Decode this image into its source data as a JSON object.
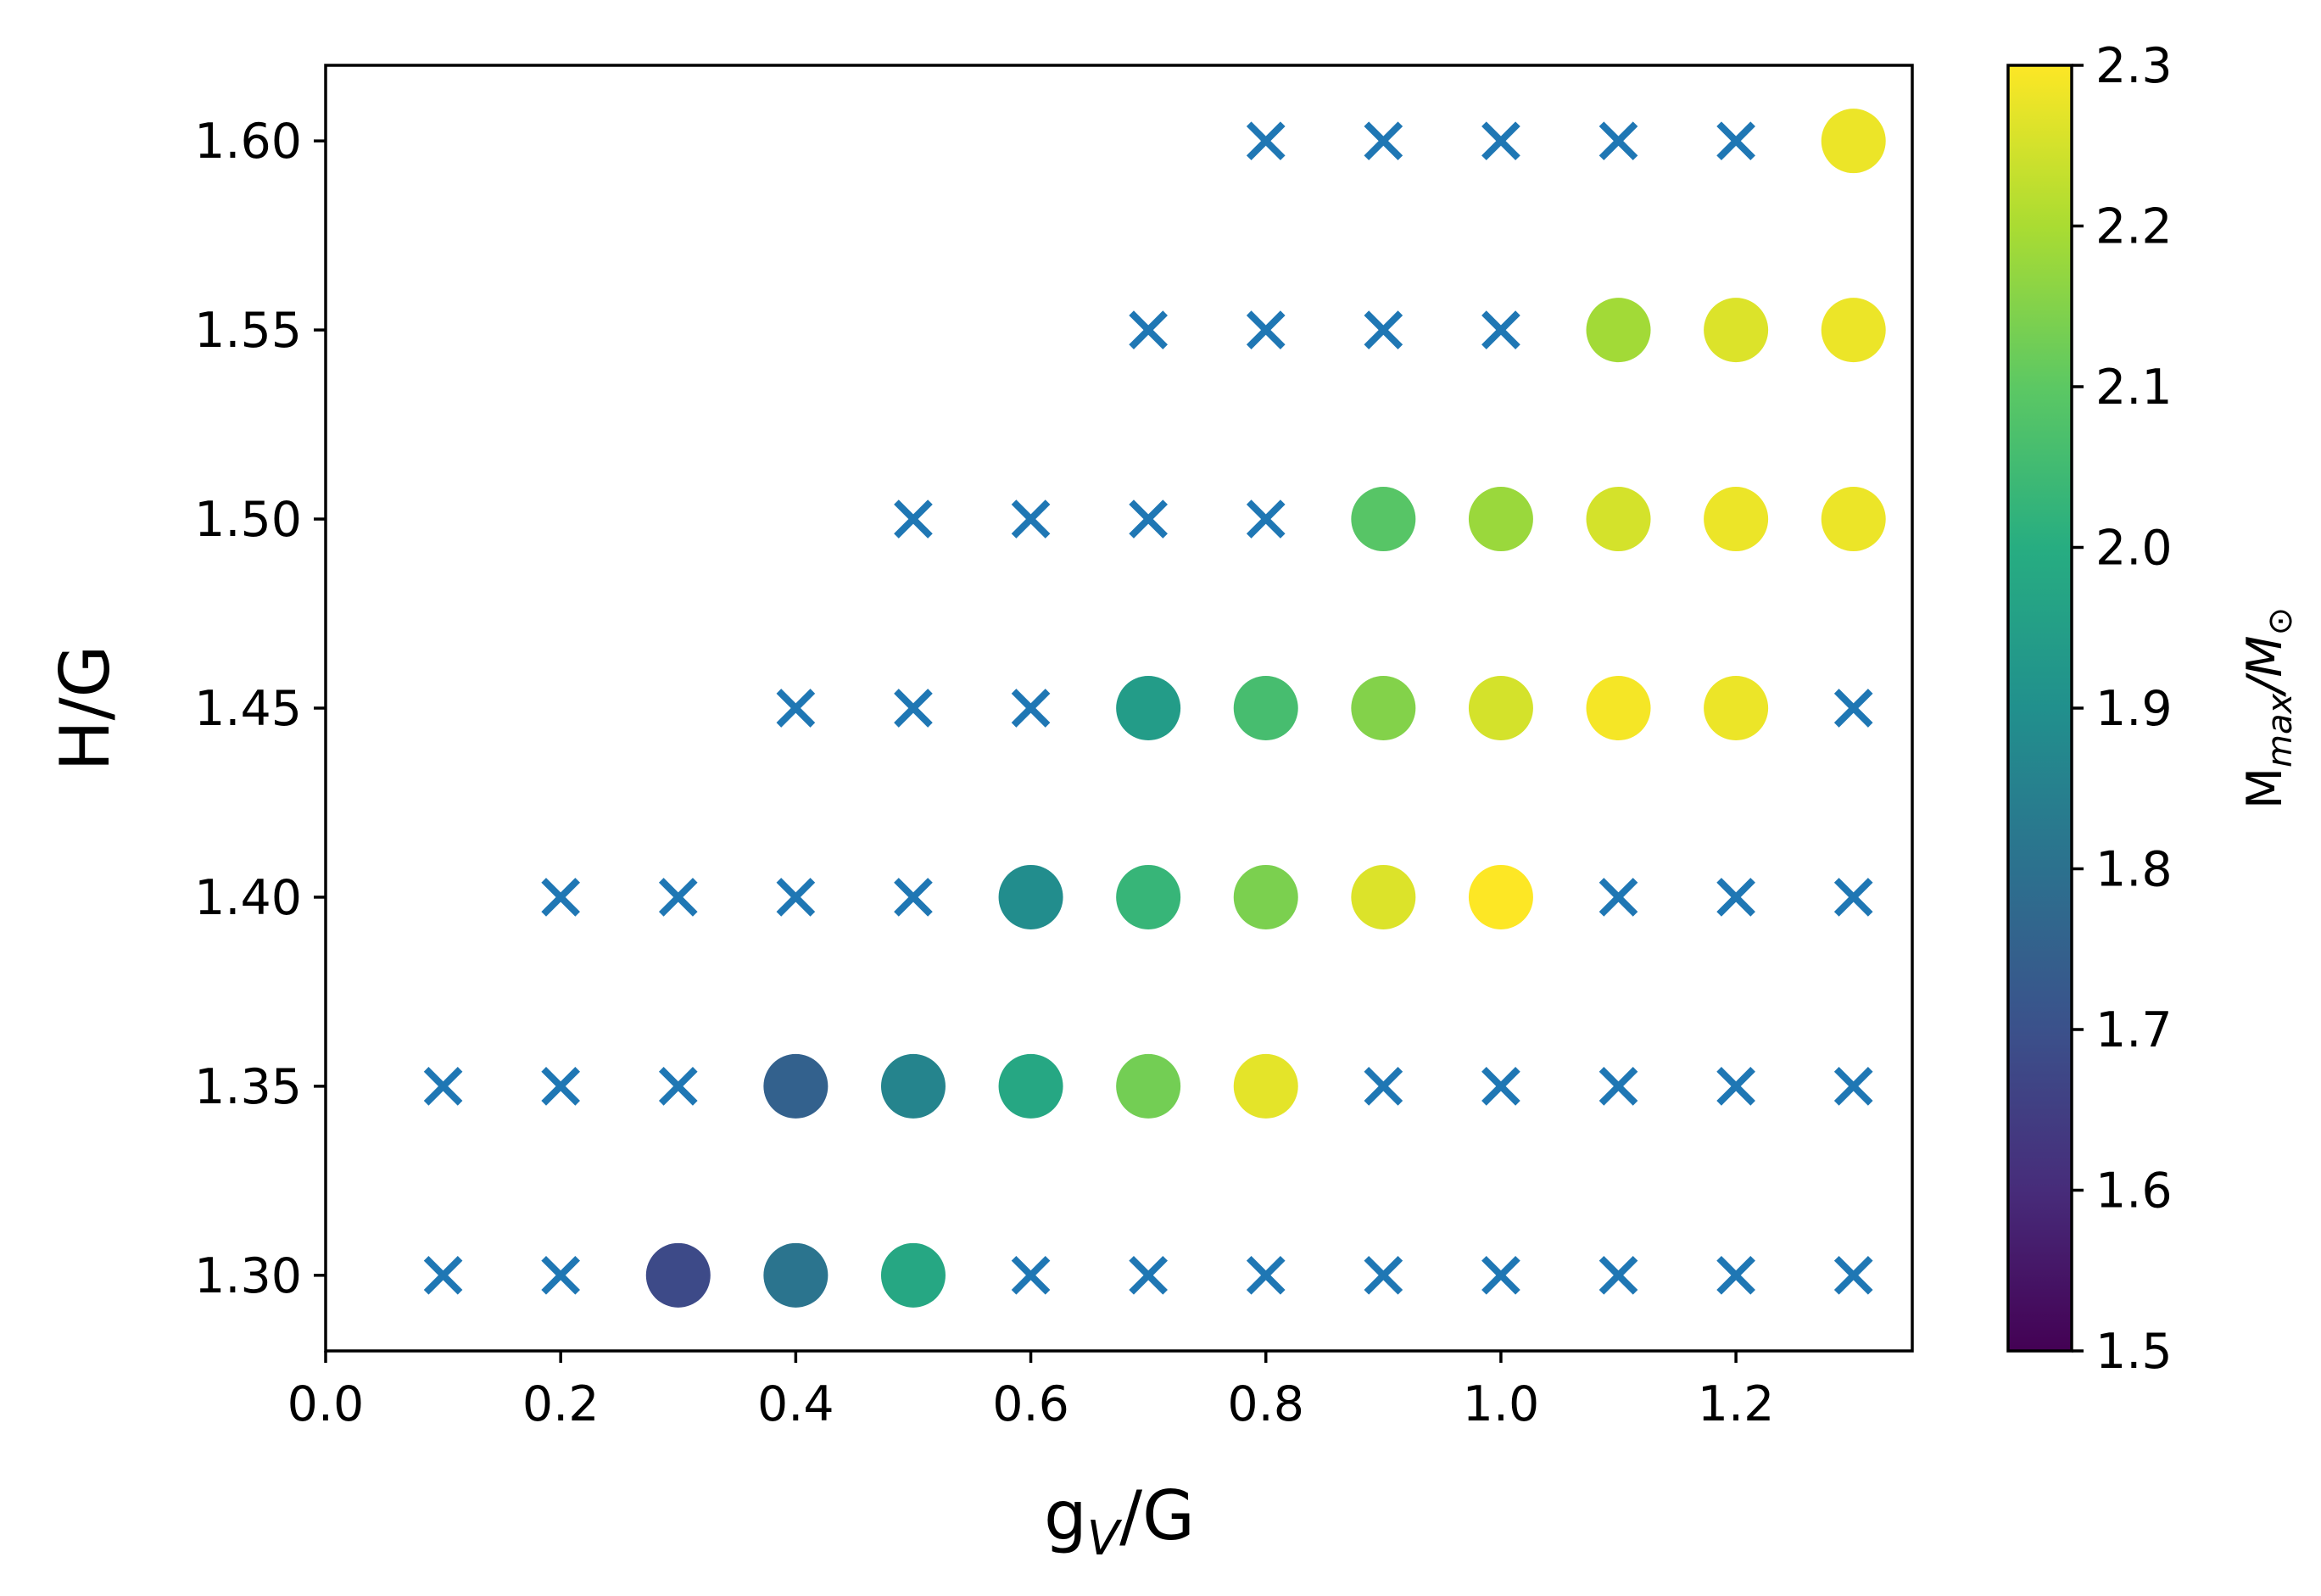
{
  "chart_data": {
    "type": "scatter",
    "xlabel": {
      "main": "g",
      "sub": "V",
      "rest": "/G"
    },
    "ylabel": "H/G",
    "xlim": [
      0.0,
      1.35
    ],
    "ylim": [
      1.28,
      1.62
    ],
    "xticks": [
      "0.0",
      "0.2",
      "0.4",
      "0.6",
      "0.8",
      "1.0",
      "1.2"
    ],
    "yticks": [
      "1.30",
      "1.35",
      "1.40",
      "1.45",
      "1.50",
      "1.55",
      "1.60"
    ],
    "colorbar": {
      "label": {
        "main": "M",
        "sub": "max",
        "rest": "/M",
        "sub2": "⊙"
      },
      "range": [
        1.5,
        2.3
      ],
      "ticks": [
        "1.5",
        "1.6",
        "1.7",
        "1.8",
        "1.9",
        "2.0",
        "2.1",
        "2.2",
        "2.3"
      ],
      "colormap": "viridis"
    },
    "marker_color_cross": "#1f77b4",
    "circles": [
      {
        "x": 0.3,
        "y": 1.3,
        "m": 1.68
      },
      {
        "x": 0.4,
        "y": 1.3,
        "m": 1.81
      },
      {
        "x": 0.5,
        "y": 1.3,
        "m": 1.98
      },
      {
        "x": 0.4,
        "y": 1.35,
        "m": 1.75
      },
      {
        "x": 0.5,
        "y": 1.35,
        "m": 1.86
      },
      {
        "x": 0.6,
        "y": 1.35,
        "m": 1.98
      },
      {
        "x": 0.7,
        "y": 1.35,
        "m": 2.13
      },
      {
        "x": 0.8,
        "y": 1.35,
        "m": 2.27
      },
      {
        "x": 0.6,
        "y": 1.4,
        "m": 1.89
      },
      {
        "x": 0.7,
        "y": 1.4,
        "m": 2.03
      },
      {
        "x": 0.8,
        "y": 1.4,
        "m": 2.14
      },
      {
        "x": 0.9,
        "y": 1.4,
        "m": 2.26
      },
      {
        "x": 1.0,
        "y": 1.4,
        "m": 2.3
      },
      {
        "x": 0.7,
        "y": 1.45,
        "m": 1.94
      },
      {
        "x": 0.8,
        "y": 1.45,
        "m": 2.06
      },
      {
        "x": 0.9,
        "y": 1.45,
        "m": 2.15
      },
      {
        "x": 1.0,
        "y": 1.45,
        "m": 2.25
      },
      {
        "x": 1.1,
        "y": 1.45,
        "m": 2.29
      },
      {
        "x": 1.2,
        "y": 1.45,
        "m": 2.28
      },
      {
        "x": 0.9,
        "y": 1.5,
        "m": 2.09
      },
      {
        "x": 1.0,
        "y": 1.5,
        "m": 2.18
      },
      {
        "x": 1.1,
        "y": 1.5,
        "m": 2.25
      },
      {
        "x": 1.2,
        "y": 1.5,
        "m": 2.28
      },
      {
        "x": 1.3,
        "y": 1.5,
        "m": 2.28
      },
      {
        "x": 1.1,
        "y": 1.55,
        "m": 2.19
      },
      {
        "x": 1.2,
        "y": 1.55,
        "m": 2.26
      },
      {
        "x": 1.3,
        "y": 1.55,
        "m": 2.28
      },
      {
        "x": 1.3,
        "y": 1.6,
        "m": 2.28
      }
    ],
    "crosses": [
      {
        "x": 0.1,
        "y": 1.3
      },
      {
        "x": 0.2,
        "y": 1.3
      },
      {
        "x": 0.6,
        "y": 1.3
      },
      {
        "x": 0.7,
        "y": 1.3
      },
      {
        "x": 0.8,
        "y": 1.3
      },
      {
        "x": 0.9,
        "y": 1.3
      },
      {
        "x": 1.0,
        "y": 1.3
      },
      {
        "x": 1.1,
        "y": 1.3
      },
      {
        "x": 1.2,
        "y": 1.3
      },
      {
        "x": 1.3,
        "y": 1.3
      },
      {
        "x": 0.1,
        "y": 1.35
      },
      {
        "x": 0.2,
        "y": 1.35
      },
      {
        "x": 0.3,
        "y": 1.35
      },
      {
        "x": 0.9,
        "y": 1.35
      },
      {
        "x": 1.0,
        "y": 1.35
      },
      {
        "x": 1.1,
        "y": 1.35
      },
      {
        "x": 1.2,
        "y": 1.35
      },
      {
        "x": 1.3,
        "y": 1.35
      },
      {
        "x": 0.2,
        "y": 1.4
      },
      {
        "x": 0.3,
        "y": 1.4
      },
      {
        "x": 0.4,
        "y": 1.4
      },
      {
        "x": 0.5,
        "y": 1.4
      },
      {
        "x": 1.1,
        "y": 1.4
      },
      {
        "x": 1.2,
        "y": 1.4
      },
      {
        "x": 1.3,
        "y": 1.4
      },
      {
        "x": 0.4,
        "y": 1.45
      },
      {
        "x": 0.5,
        "y": 1.45
      },
      {
        "x": 0.6,
        "y": 1.45
      },
      {
        "x": 1.3,
        "y": 1.45
      },
      {
        "x": 0.5,
        "y": 1.5
      },
      {
        "x": 0.6,
        "y": 1.5
      },
      {
        "x": 0.7,
        "y": 1.5
      },
      {
        "x": 0.8,
        "y": 1.5
      },
      {
        "x": 0.7,
        "y": 1.55
      },
      {
        "x": 0.8,
        "y": 1.55
      },
      {
        "x": 0.9,
        "y": 1.55
      },
      {
        "x": 1.0,
        "y": 1.55
      },
      {
        "x": 0.8,
        "y": 1.6
      },
      {
        "x": 0.9,
        "y": 1.6
      },
      {
        "x": 1.0,
        "y": 1.6
      },
      {
        "x": 1.1,
        "y": 1.6
      },
      {
        "x": 1.2,
        "y": 1.6
      }
    ]
  }
}
